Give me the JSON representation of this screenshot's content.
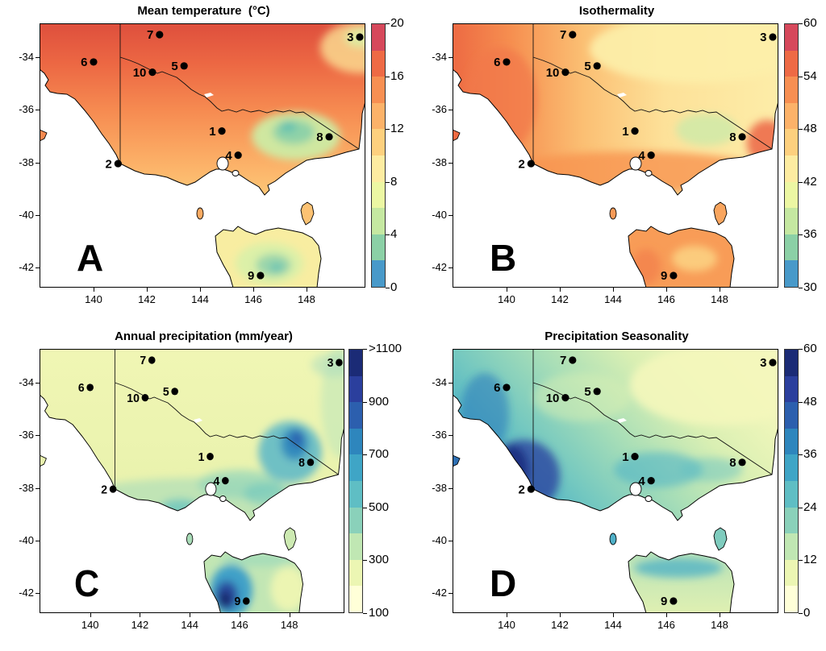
{
  "shared": {
    "x_tick_labels": [
      "140",
      "142",
      "144",
      "146",
      "148"
    ],
    "y_tick_labels": [
      "-34",
      "-36",
      "-38",
      "-40",
      "-42"
    ],
    "sites": [
      {
        "label": "1",
        "lon": 144.82,
        "lat": -36.81
      },
      {
        "label": "2",
        "lon": 140.92,
        "lat": -38.05
      },
      {
        "label": "3",
        "lon": 150.0,
        "lat": -33.23
      },
      {
        "label": "4",
        "lon": 145.43,
        "lat": -37.73
      },
      {
        "label": "5",
        "lon": 143.4,
        "lat": -34.33
      },
      {
        "label": "6",
        "lon": 140.0,
        "lat": -34.18
      },
      {
        "label": "7",
        "lon": 142.48,
        "lat": -33.14
      },
      {
        "label": "8",
        "lon": 148.85,
        "lat": -37.03
      },
      {
        "label": "9",
        "lon": 146.27,
        "lat": -42.31
      },
      {
        "label": "10",
        "lon": 142.21,
        "lat": -34.57
      }
    ]
  },
  "panels": [
    {
      "letter": "A",
      "title": "Mean temperature  (°C)",
      "colorbar": {
        "labels": [
          "20",
          "16",
          "12",
          "8",
          "4",
          "0"
        ],
        "palette_top_to_bottom": [
          "#d6485b",
          "#ee6a45",
          "#f78f52",
          "#fcb269",
          "#fdd07e",
          "#fdeca1",
          "#ecf7a3",
          "#c5e8a1",
          "#8bd0a6",
          "#4899c9"
        ]
      }
    },
    {
      "letter": "B",
      "title": "Isothermality",
      "colorbar": {
        "labels": [
          "60",
          "54",
          "48",
          "42",
          "36",
          "30"
        ],
        "palette_top_to_bottom": [
          "#d6485b",
          "#ee6a45",
          "#f78f52",
          "#fcb269",
          "#fdd07e",
          "#fdeca1",
          "#ecf7a3",
          "#c5e8a1",
          "#8bd0a6",
          "#4899c9"
        ]
      }
    },
    {
      "letter": "C",
      "title": "Annual precipitation (mm/year)",
      "colorbar": {
        "labels": [
          ">1100",
          "900",
          "700",
          "500",
          "300",
          "100"
        ],
        "palette_top_to_bottom": [
          "#1b2b76",
          "#2b3f9d",
          "#2c5fae",
          "#2e86bd",
          "#3fa5c6",
          "#5fbec4",
          "#8ad1ba",
          "#c0e7b3",
          "#ecf6b3",
          "#ffffd8"
        ]
      }
    },
    {
      "letter": "D",
      "title": "Precipitation Seasonality",
      "colorbar": {
        "labels": [
          "60",
          "48",
          "36",
          "24",
          "12",
          "0"
        ],
        "palette_top_to_bottom": [
          "#1b2b76",
          "#2b3f9d",
          "#2c5fae",
          "#2e86bd",
          "#3fa5c6",
          "#5fbec4",
          "#8ad1ba",
          "#c0e7b3",
          "#ecf6b3",
          "#ffffd8"
        ]
      }
    }
  ],
  "chart_data": [
    {
      "type": "heatmap",
      "title": "Mean temperature  (°C)",
      "panel": "A",
      "x_ticks": [
        140,
        142,
        144,
        146,
        148
      ],
      "y_ticks": [
        -34,
        -36,
        -38,
        -40,
        -42
      ],
      "x_range": [
        138.0,
        150.2
      ],
      "y_range": [
        -42.8,
        -32.7
      ],
      "colorbar_ticks": [
        0,
        4,
        8,
        12,
        16,
        20
      ],
      "colorbar_range": [
        0,
        20
      ],
      "legend_position": "right",
      "palette": "spectral (blue low to red high), 10 bins"
    },
    {
      "type": "heatmap",
      "title": "Isothermality",
      "panel": "B",
      "x_ticks": [
        140,
        142,
        144,
        146,
        148
      ],
      "y_ticks": [
        -34,
        -36,
        -38,
        -40,
        -42
      ],
      "x_range": [
        138.0,
        150.2
      ],
      "y_range": [
        -42.8,
        -32.7
      ],
      "colorbar_ticks": [
        30,
        36,
        42,
        48,
        54,
        60
      ],
      "colorbar_range": [
        30,
        60
      ],
      "legend_position": "right",
      "palette": "spectral (blue low to red high), 10 bins"
    },
    {
      "type": "heatmap",
      "title": "Annual precipitation (mm/year)",
      "panel": "C",
      "x_ticks": [
        140,
        142,
        144,
        146,
        148
      ],
      "y_ticks": [
        -34,
        -36,
        -38,
        -40,
        -42
      ],
      "x_range": [
        138.0,
        150.2
      ],
      "y_range": [
        -42.8,
        -32.7
      ],
      "colorbar_ticks": [
        100,
        300,
        500,
        700,
        900,
        ">1100"
      ],
      "colorbar_range": [
        100,
        1100
      ],
      "legend_position": "right",
      "palette": "YlGnBu (cream low to navy high), 10 bins"
    },
    {
      "type": "heatmap",
      "title": "Precipitation Seasonality",
      "panel": "D",
      "x_ticks": [
        140,
        142,
        144,
        146,
        148
      ],
      "y_ticks": [
        -34,
        -36,
        -38,
        -40,
        -42
      ],
      "x_range": [
        138.0,
        150.2
      ],
      "y_range": [
        -42.8,
        -32.7
      ],
      "colorbar_ticks": [
        0,
        12,
        24,
        36,
        48,
        60
      ],
      "colorbar_range": [
        0,
        60
      ],
      "legend_position": "right",
      "palette": "YlGnBu (cream low to navy high), 10 bins"
    },
    {
      "type": "scatter",
      "name": "numbered study sites (same in all panels)",
      "points": [
        {
          "label": "1",
          "lon": 144.82,
          "lat": -36.81
        },
        {
          "label": "2",
          "lon": 140.92,
          "lat": -38.05
        },
        {
          "label": "3",
          "lon": 150.0,
          "lat": -33.23
        },
        {
          "label": "4",
          "lon": 145.43,
          "lat": -37.73
        },
        {
          "label": "5",
          "lon": 143.4,
          "lat": -34.33
        },
        {
          "label": "6",
          "lon": 140.0,
          "lat": -34.18
        },
        {
          "label": "7",
          "lon": 142.48,
          "lat": -33.14
        },
        {
          "label": "8",
          "lon": 148.85,
          "lat": -37.03
        },
        {
          "label": "9",
          "lon": 146.27,
          "lat": -42.31
        },
        {
          "label": "10",
          "lon": 142.21,
          "lat": -34.57
        }
      ]
    }
  ]
}
